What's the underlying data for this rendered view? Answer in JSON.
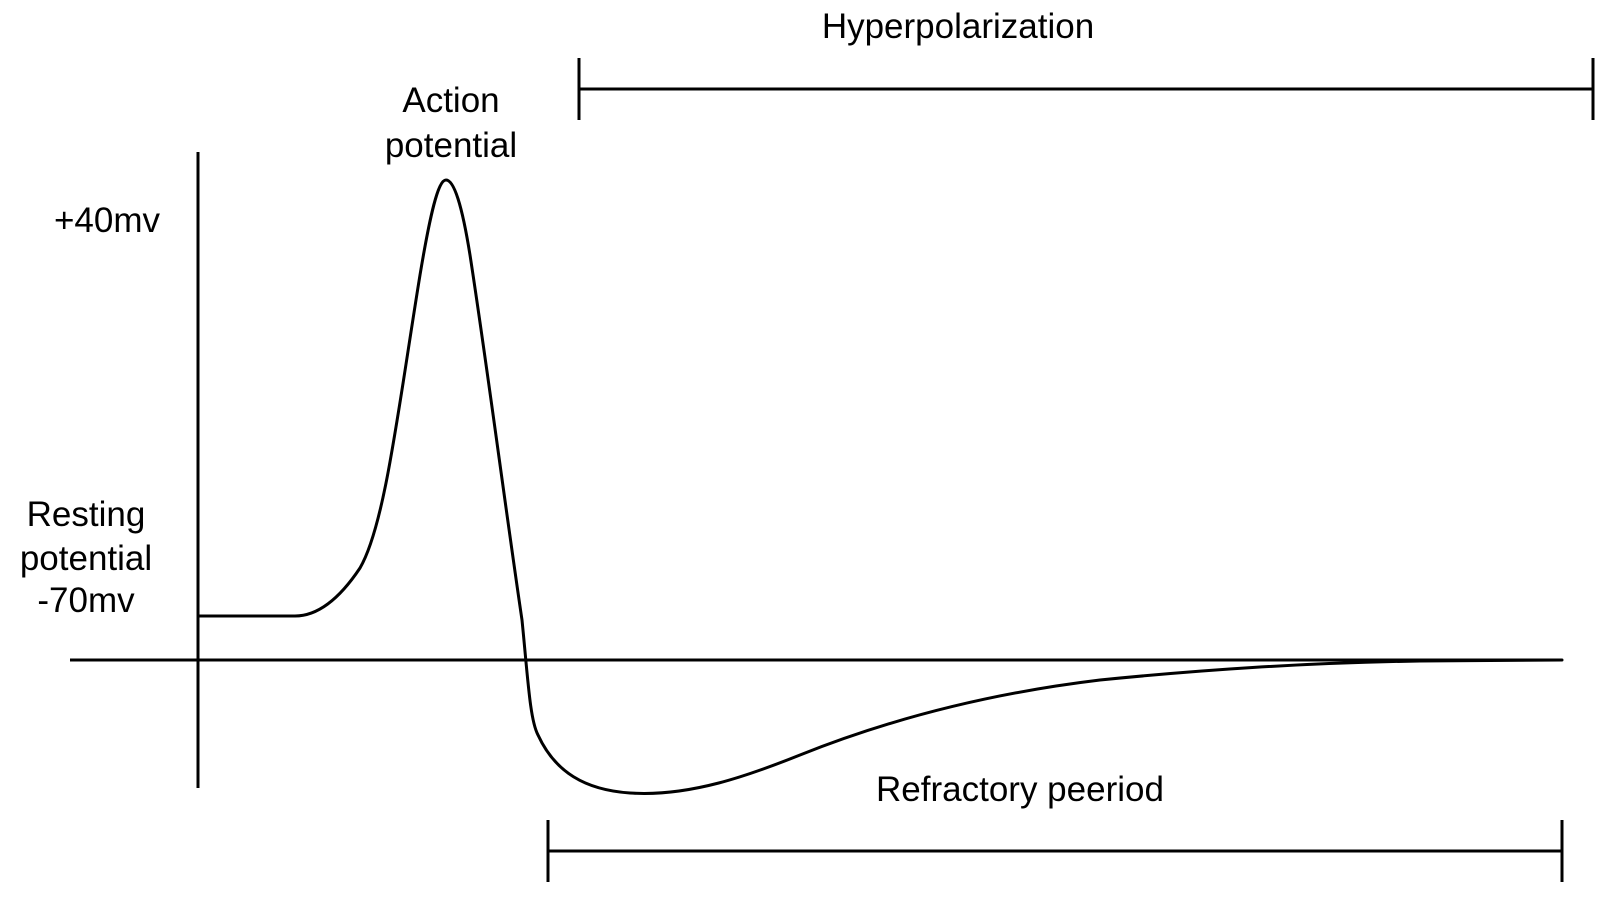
{
  "labels": {
    "hyperpolarization": "Hyperpolarization",
    "action_line1": "Action",
    "action_line2": "potential",
    "plus40": "+40mv",
    "resting_line1": "Resting",
    "resting_line2": "potential",
    "minus70": "-70mv",
    "refractory": "Refractory peeriod"
  },
  "colors": {
    "ink": "#000000",
    "background": "#ffffff"
  }
}
